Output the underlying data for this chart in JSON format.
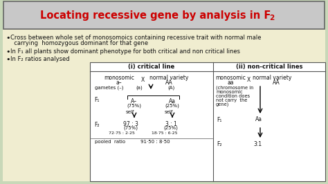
{
  "title": "Locating recessive gene by analysis in F",
  "title_sub": "2",
  "title_color": "#cc0000",
  "bg_color": "#c8d8b8",
  "content_bg": "#f0edd0",
  "title_box_color": "#c8c8c8",
  "table_bg": "#f0ead8",
  "table_border": "#555555",
  "text_color": "#111111",
  "bullet1_l1": "Cross between whole set of monosomoics containing recessive trait with normal male",
  "bullet1_l2": "  carrying  homozygous dominant for that gene",
  "bullet2": "In F₁ all plants show dominant phenotype for both critical and non critical lines",
  "bullet3": "In F₂ ratios analysed"
}
